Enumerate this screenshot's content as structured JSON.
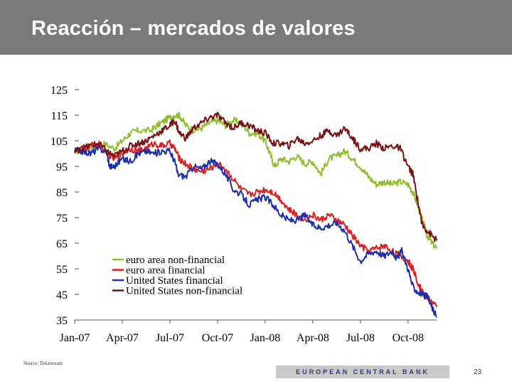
{
  "slide": {
    "title": "Reacción – mercados de valores",
    "source": "Source: Datastream",
    "footer_text": "EUROPEAN CENTRAL BANK",
    "page_number": "23"
  },
  "chart_data": {
    "type": "line",
    "title": "",
    "xlabel": "",
    "ylabel": "",
    "ylim": [
      35,
      125
    ],
    "yticks": [
      125,
      115,
      105,
      95,
      85,
      75,
      65,
      55,
      45,
      35
    ],
    "xlim": [
      0,
      22.8
    ],
    "x_ticks": [
      {
        "label": "Jan-07",
        "x": 0
      },
      {
        "label": "Apr-07",
        "x": 3
      },
      {
        "label": "Jul-07",
        "x": 6
      },
      {
        "label": "Oct-07",
        "x": 9
      },
      {
        "label": "Jan-08",
        "x": 12
      },
      {
        "label": "Apr-08",
        "x": 15
      },
      {
        "label": "Jul-08",
        "x": 18
      },
      {
        "label": "Oct-08",
        "x": 21
      }
    ],
    "x_unit": "months since Jan-07",
    "legend_position": "bottom-left inside plot",
    "series": [
      {
        "name": "euro area non-financial",
        "color": "#8dbf2a",
        "x": [
          0,
          1,
          1.8,
          2.5,
          3,
          3.5,
          4,
          4.8,
          5.2,
          5.7,
          6.2,
          6.6,
          7,
          7.5,
          8,
          8.5,
          9,
          9.5,
          10,
          10.5,
          11,
          11.5,
          12,
          12.3,
          12.6,
          13,
          13.5,
          14,
          14.5,
          15,
          15.5,
          16,
          16.5,
          17,
          17.5,
          18,
          18.5,
          19,
          19.5,
          20,
          20.5,
          21,
          21.3,
          21.6,
          21.9,
          22.2,
          22.5,
          22.8
        ],
        "values": [
          101,
          101,
          104,
          102,
          105,
          108,
          109,
          109,
          111,
          113,
          115,
          115,
          111,
          109,
          110,
          112,
          113,
          111,
          113,
          112,
          108,
          108,
          105,
          100,
          95,
          98,
          97,
          99,
          96,
          97,
          92,
          98,
          99,
          101,
          98,
          95,
          91,
          88,
          89,
          88,
          89,
          88,
          85,
          80,
          74,
          68,
          65,
          63
        ]
      },
      {
        "name": "euro area financial",
        "color": "#dd1f1f",
        "x": [
          0,
          0.5,
          1,
          1.5,
          2,
          2.5,
          3,
          3.5,
          4,
          4.5,
          5,
          5.5,
          6,
          6.3,
          6.6,
          7,
          7.5,
          8,
          8.5,
          9,
          9.5,
          10,
          10.5,
          11,
          11.5,
          12,
          12.5,
          13,
          13.5,
          14,
          14.5,
          15,
          15.5,
          16,
          16.5,
          17,
          17.5,
          18,
          18.5,
          19,
          19.5,
          20,
          20.5,
          21,
          21.3,
          21.6,
          21.9,
          22.2,
          22.5,
          22.8
        ],
        "values": [
          101,
          102,
          103,
          104,
          100,
          98,
          100,
          102,
          101,
          102,
          104,
          103,
          104,
          102,
          98,
          96,
          94,
          93,
          94,
          96,
          94,
          90,
          86,
          84,
          85,
          86,
          85,
          82,
          78,
          76,
          74,
          76,
          74,
          76,
          74,
          72,
          68,
          64,
          62,
          63,
          64,
          62,
          60,
          58,
          55,
          50,
          46,
          44,
          42,
          40
        ]
      },
      {
        "name": "United States financial",
        "color": "#1c2fb0",
        "x": [
          0,
          0.5,
          1,
          1.5,
          2,
          2.2,
          2.5,
          3,
          3.5,
          4,
          4.5,
          5,
          5.5,
          6,
          6.3,
          6.5,
          7,
          7.5,
          8,
          8.5,
          9,
          9.5,
          10,
          10.5,
          11,
          11.5,
          12,
          12.5,
          13,
          13.5,
          14,
          14.5,
          15,
          15.5,
          16,
          16.5,
          17,
          17.5,
          18,
          18.5,
          19,
          19.5,
          20,
          20.3,
          20.6,
          21,
          21.3,
          21.6,
          21.9,
          22.2,
          22.5,
          22.8
        ],
        "values": [
          101,
          101,
          100,
          102,
          101,
          95,
          95,
          98,
          97,
          100,
          101,
          100,
          101,
          101,
          97,
          92,
          91,
          95,
          94,
          97,
          96,
          92,
          86,
          84,
          80,
          82,
          83,
          80,
          76,
          74,
          74,
          76,
          72,
          71,
          72,
          73,
          70,
          64,
          58,
          61,
          62,
          60,
          62,
          59,
          62,
          55,
          48,
          46,
          45,
          44,
          40,
          36
        ]
      },
      {
        "name": "United States non-financial",
        "color": "#7a1212",
        "x": [
          0,
          0.5,
          1,
          1.5,
          2,
          2.5,
          3,
          3.5,
          4,
          4.5,
          5,
          5.5,
          6,
          6.3,
          6.6,
          7,
          7.5,
          8,
          8.5,
          9,
          9.5,
          10,
          10.5,
          11,
          11.5,
          12,
          12.5,
          13,
          13.5,
          14,
          14.5,
          15,
          15.5,
          16,
          16.5,
          17,
          17.5,
          18,
          18.5,
          19,
          19.5,
          20,
          20.5,
          21,
          21.3,
          21.6,
          21.9,
          22.2,
          22.5,
          22.8
        ],
        "values": [
          101,
          102,
          103,
          104,
          101,
          99,
          101,
          103,
          104,
          105,
          107,
          109,
          111,
          113,
          108,
          106,
          110,
          112,
          114,
          115,
          112,
          110,
          112,
          111,
          109,
          108,
          104,
          104,
          103,
          106,
          104,
          105,
          107,
          109,
          107,
          110,
          106,
          102,
          102,
          104,
          102,
          103,
          102,
          95,
          92,
          82,
          72,
          70,
          68,
          66
        ]
      }
    ]
  }
}
